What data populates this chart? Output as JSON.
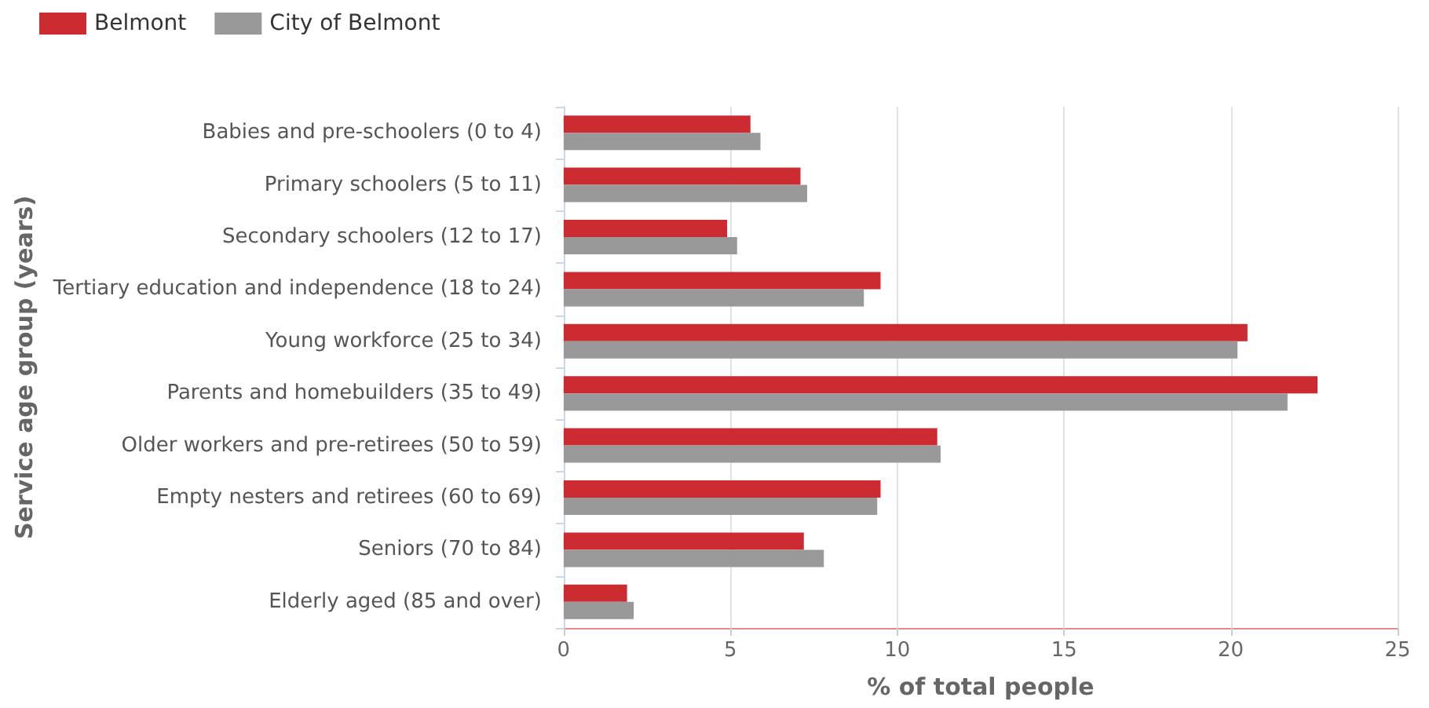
{
  "chart_data": {
    "type": "bar",
    "orientation": "horizontal",
    "xlabel": "% of total people",
    "ylabel": "Service age group (years)",
    "categories": [
      "Babies and pre-schoolers (0 to 4)",
      "Primary schoolers (5 to 11)",
      "Secondary schoolers (12 to 17)",
      "Tertiary education and independence (18 to 24)",
      "Young workforce (25 to 34)",
      "Parents and homebuilders (35 to 49)",
      "Older workers and pre-retirees (50 to 59)",
      "Empty nesters and retirees (60 to 69)",
      "Seniors (70 to 84)",
      "Elderly aged (85 and over)"
    ],
    "series": [
      {
        "name": "Belmont",
        "color": "#cc2b32",
        "values": [
          5.6,
          7.1,
          4.9,
          9.5,
          20.5,
          22.6,
          11.2,
          9.5,
          7.2,
          1.9
        ]
      },
      {
        "name": "City of Belmont",
        "color": "#999999",
        "values": [
          5.9,
          7.3,
          5.2,
          9.0,
          20.2,
          21.7,
          11.3,
          9.4,
          7.8,
          2.1
        ]
      }
    ],
    "xlim": [
      0,
      25
    ],
    "xticks": [
      0,
      5,
      10,
      15,
      20,
      25
    ],
    "grid": "x",
    "legend": "top left"
  }
}
